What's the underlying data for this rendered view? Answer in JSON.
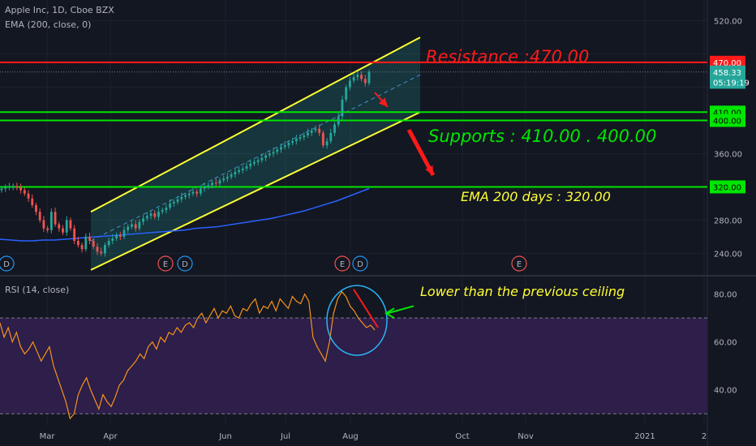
{
  "header": {
    "symbol_line": "Apple Inc, 1D, Cboe BZX",
    "ema_line": "EMA (200, close, 0)",
    "rsi_line": "RSI (14, close)"
  },
  "annotations": {
    "resistance": "Resistance :470.00",
    "supports": "Supports : 410.00 .  400.00",
    "ema": "EMA 200 days :  320.00",
    "rsi_note": "Lower than the previous ceiling"
  },
  "colors": {
    "background": "#131722",
    "up": "#26a69a",
    "down": "#ef5350",
    "ema": "#2962ff",
    "rsi": "#f7931a",
    "support": "#00e600",
    "channel": "#ffff33",
    "resistance": "#ff1a1a",
    "rsi_band": "#2d1e4a"
  },
  "chart_data": [
    {
      "type": "candlestick",
      "title": "Apple Inc, 1D, Cboe BZX",
      "y_ticks": [
        240,
        280,
        320,
        360,
        400,
        440,
        480,
        520
      ],
      "y_tick_labels": [
        "240.00",
        "280.00",
        "320.00",
        "360.00",
        "400.00",
        "440.00",
        "480.00",
        "520.00"
      ],
      "ylim": [
        215,
        545
      ],
      "x_ticks": [
        "Mar",
        "Apr",
        "Jun",
        "Jul",
        "Aug",
        "Oct",
        "Nov",
        "2021",
        "2"
      ],
      "price_tags": [
        {
          "value": 470.0,
          "label": "470.00",
          "color": "#ff1a1a"
        },
        {
          "value": 458.33,
          "label": "458.33",
          "color": "#26a69a"
        },
        {
          "value": 446.0,
          "label": "05:19:19",
          "color": "#26a69a"
        },
        {
          "value": 410.0,
          "label": "410.00",
          "color": "#00e600"
        },
        {
          "value": 400.0,
          "label": "400.00",
          "color": "#00e600"
        },
        {
          "value": 320.0,
          "label": "320.00",
          "color": "#00e600"
        }
      ],
      "horizontal_levels": [
        {
          "name": "resistance",
          "value": 470
        },
        {
          "name": "support-1",
          "value": 410
        },
        {
          "name": "support-2",
          "value": 400
        },
        {
          "name": "ema-level",
          "value": 320
        }
      ],
      "close_series": [
        318,
        319,
        320,
        321,
        319,
        316,
        312,
        306,
        298,
        290,
        280,
        270,
        268,
        290,
        275,
        270,
        265,
        280,
        270,
        255,
        250,
        245,
        260,
        255,
        248,
        242,
        240,
        250,
        255,
        258,
        262,
        260,
        268,
        272,
        275,
        270,
        278,
        282,
        285,
        288,
        284,
        290,
        292,
        295,
        300,
        302,
        305,
        308,
        310,
        312,
        314,
        312,
        318,
        320,
        322,
        325,
        324,
        328,
        330,
        332,
        335,
        338,
        340,
        342,
        345,
        348,
        350,
        352,
        355,
        358,
        360,
        362,
        365,
        368,
        370,
        373,
        375,
        378,
        380,
        382,
        385,
        388,
        390,
        385,
        370,
        375,
        385,
        395,
        405,
        425,
        440,
        448,
        452,
        455,
        450,
        445,
        458.33
      ],
      "ema_series": [
        257,
        256,
        255,
        255,
        256,
        256,
        257,
        258,
        259,
        260,
        261,
        262,
        263,
        264,
        265,
        266,
        267,
        268,
        270,
        271,
        272,
        274,
        276,
        278,
        280,
        282,
        285,
        288,
        291,
        295,
        299,
        303,
        308,
        313,
        318
      ],
      "event_markers": [
        "D",
        "E",
        "D",
        "E",
        "D",
        "E"
      ]
    },
    {
      "type": "line",
      "title": "RSI (14, close)",
      "y_ticks": [
        40,
        60,
        80
      ],
      "y_tick_labels": [
        "40.00",
        "60.00",
        "80.00"
      ],
      "ylim": [
        25,
        87
      ],
      "bands": [
        30,
        70
      ],
      "series": [
        68,
        62,
        66,
        60,
        64,
        58,
        55,
        57,
        60,
        56,
        52,
        55,
        58,
        50,
        45,
        40,
        35,
        28,
        30,
        38,
        42,
        45,
        40,
        36,
        32,
        38,
        35,
        33,
        37,
        42,
        44,
        48,
        50,
        52,
        55,
        53,
        58,
        60,
        57,
        62,
        60,
        64,
        63,
        66,
        64,
        67,
        68,
        66,
        70,
        72,
        68,
        71,
        74,
        70,
        73,
        72,
        75,
        71,
        70,
        74,
        73,
        76,
        78,
        72,
        75,
        74,
        77,
        73,
        78,
        76,
        74,
        79,
        77,
        76,
        80,
        77,
        62,
        58,
        55,
        52,
        60,
        72,
        78,
        81,
        79,
        75,
        73,
        70,
        68,
        66,
        67,
        65
      ]
    }
  ]
}
